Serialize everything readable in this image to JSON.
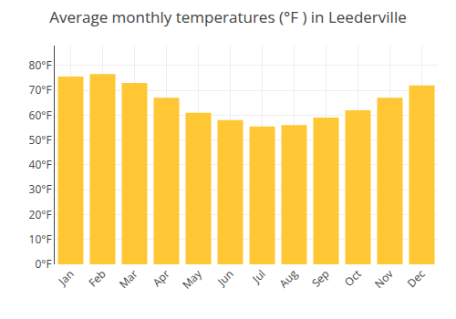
{
  "chart_data": {
    "type": "bar",
    "title": "Average monthly temperatures (°F ) in Leederville",
    "categories": [
      "Jan",
      "Feb",
      "Mar",
      "Apr",
      "May",
      "Jun",
      "Jul",
      "Aug",
      "Sep",
      "Oct",
      "Nov",
      "Dec"
    ],
    "values": [
      75.5,
      76.5,
      73.0,
      67.0,
      61.0,
      58.0,
      55.5,
      56.0,
      59.0,
      62.0,
      67.0,
      72.0
    ],
    "color": "#FFC733",
    "ylim": [
      0,
      88
    ],
    "yticks": [
      {
        "value": 0,
        "label": "0°F"
      },
      {
        "value": 10,
        "label": "10°F"
      },
      {
        "value": 20,
        "label": "20°F"
      },
      {
        "value": 30,
        "label": "30°F"
      },
      {
        "value": 40,
        "label": "40°F"
      },
      {
        "value": 50,
        "label": "50°F"
      },
      {
        "value": 60,
        "label": "60°F"
      },
      {
        "value": 70,
        "label": "70°F"
      },
      {
        "value": 80,
        "label": "80°F"
      }
    ],
    "grid": true
  }
}
